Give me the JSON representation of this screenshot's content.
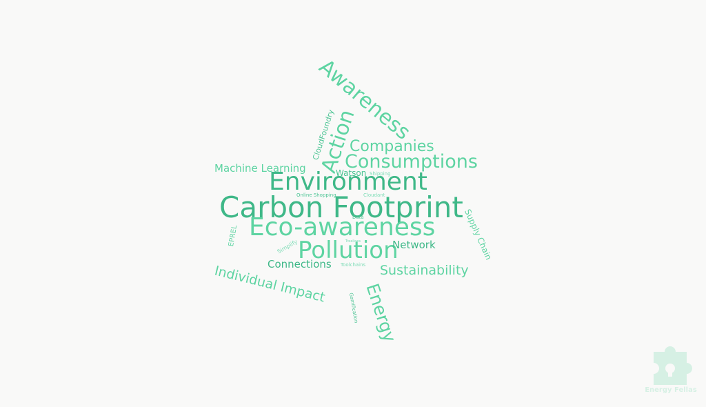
{
  "wordcloud": {
    "carbon_footprint": "Carbon Footprint",
    "environment": "Environment",
    "eco_awareness": "Eco-awareness",
    "pollution": "Pollution",
    "consumptions": "Consumptions",
    "companies": "Companies",
    "awareness": "Awareness",
    "action": "Action",
    "cloudfoundry": "CloudFoundry",
    "machine_learning": "Machine Learning",
    "watson": "Watson",
    "shipping": "Shipping",
    "online_shopping": "Online Shopping",
    "cloudant": "Cloudant",
    "data": "Data",
    "supply_chain": "Supply Chain",
    "eprel": "EPREL",
    "simplify": "Simplify",
    "treelines": "Treelines",
    "network": "Network",
    "connections": "Connections",
    "toolchains": "Toolchains",
    "sustainability": "Sustainability",
    "individual_impact": "Individual Impact",
    "gamification": "Gamification",
    "energy": "Energy"
  },
  "watermark": {
    "label": "Energy Fellas",
    "icon": "puzzle-piece-icon",
    "color": "#5ed4a2"
  },
  "palette": {
    "background": "#f9f9f8",
    "primary_green": "#3fb888",
    "mint_green": "#5ed4a2"
  }
}
